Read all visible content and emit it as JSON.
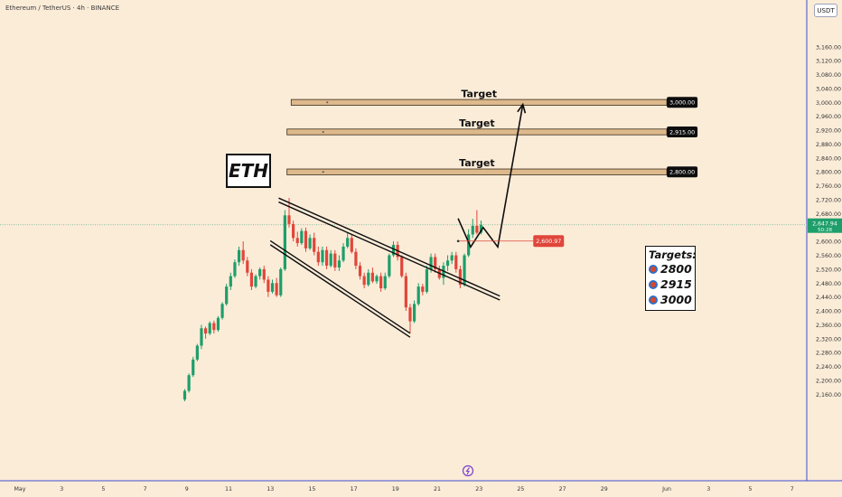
{
  "header": {
    "title": "Ethereum / TetherUS · 4h · BINANCE"
  },
  "currency_button": {
    "label": "USDT"
  },
  "eth_label": {
    "text": "ETH"
  },
  "targets_box": {
    "title": "Targets:",
    "items": [
      {
        "value": "2800",
        "icon": "target-icon"
      },
      {
        "value": "2915",
        "icon": "target-icon"
      },
      {
        "value": "3000",
        "icon": "target-icon"
      }
    ]
  },
  "colors": {
    "up": "#1e9e6a",
    "down": "#e0463a",
    "background": "#fbecd8",
    "target_zone": "#ddb98c",
    "price_marker": "#e0463a",
    "current_price_marker": "#1e9e6a"
  },
  "chart_data": {
    "type": "candlestick",
    "title": "Ethereum / TetherUS · 4h · BINANCE",
    "currency": "USDT",
    "y_axis": {
      "range": [
        2140,
        3200
      ],
      "ticks": [
        "3,160.00",
        "3,120.00",
        "3,080.00",
        "3,040.00",
        "3,000.00",
        "2,960.00",
        "2,920.00",
        "2,880.00",
        "2,840.00",
        "2,800.00",
        "2,760.00",
        "2,720.00",
        "2,680.00",
        "2,640.00",
        "2,600.00",
        "2,560.00",
        "2,520.00",
        "2,480.00",
        "2,440.00",
        "2,400.00",
        "2,360.00",
        "2,320.00",
        "2,280.00",
        "2,240.00",
        "2,200.00",
        "2,160.00"
      ],
      "tick_values": [
        3160,
        3120,
        3080,
        3040,
        3000,
        2960,
        2920,
        2880,
        2840,
        2800,
        2760,
        2720,
        2680,
        2640,
        2600,
        2560,
        2520,
        2480,
        2440,
        2400,
        2360,
        2320,
        2280,
        2240,
        2200,
        2160
      ]
    },
    "x_axis": {
      "labels": [
        "May",
        "3",
        "5",
        "7",
        "9",
        "11",
        "13",
        "15",
        "17",
        "19",
        "21",
        "23",
        "25",
        "27",
        "29",
        "Jun",
        "3",
        "5",
        "7"
      ],
      "day_index": [
        0,
        2,
        4,
        6,
        8,
        10,
        12,
        14,
        16,
        18,
        20,
        22,
        24,
        26,
        28,
        31,
        33,
        35,
        37
      ]
    },
    "target_zones": [
      {
        "label": "Target",
        "price": 3000,
        "price_label": "3,000.00",
        "day_start": 13.0,
        "day_end": 31.0
      },
      {
        "label": "Target",
        "price": 2915,
        "price_label": "2,915.00",
        "day_start": 12.8,
        "day_end": 31.0
      },
      {
        "label": "Target",
        "price": 2800,
        "price_label": "2,800.00",
        "day_start": 12.8,
        "day_end": 31.0
      }
    ],
    "current_price": {
      "value": 2647.94,
      "label": "2,647.94",
      "countdown": "50:28"
    },
    "marked_price": {
      "value": 2600.97,
      "label": "2,600.97"
    },
    "pattern": {
      "name": "falling wedge",
      "upper_line": [
        {
          "day": 12.4,
          "price": 2719
        },
        {
          "day": 23.0,
          "price": 2437
        }
      ],
      "lower_line": [
        {
          "day": 12.0,
          "price": 2596
        },
        {
          "day": 18.7,
          "price": 2330
        }
      ]
    },
    "projection": [
      {
        "day": 21.0,
        "price": 2666
      },
      {
        "day": 21.6,
        "price": 2584
      },
      {
        "day": 22.2,
        "price": 2640
      },
      {
        "day": 22.9,
        "price": 2584
      },
      {
        "day": 24.1,
        "price": 2994
      }
    ],
    "candles": [
      [
        7.9,
        2145,
        2170,
        2140,
        2175
      ],
      [
        8.1,
        2170,
        2215,
        2165,
        2220
      ],
      [
        8.3,
        2215,
        2260,
        2210,
        2268
      ],
      [
        8.5,
        2260,
        2300,
        2255,
        2305
      ],
      [
        8.7,
        2300,
        2350,
        2290,
        2360
      ],
      [
        8.9,
        2350,
        2335,
        2320,
        2355
      ],
      [
        9.1,
        2335,
        2365,
        2330,
        2370
      ],
      [
        9.3,
        2365,
        2345,
        2335,
        2372
      ],
      [
        9.5,
        2345,
        2380,
        2340,
        2385
      ],
      [
        9.7,
        2380,
        2420,
        2375,
        2425
      ],
      [
        9.9,
        2420,
        2470,
        2415,
        2478
      ],
      [
        10.1,
        2470,
        2500,
        2460,
        2510
      ],
      [
        10.3,
        2500,
        2540,
        2495,
        2548
      ],
      [
        10.5,
        2540,
        2575,
        2530,
        2585
      ],
      [
        10.7,
        2575,
        2545,
        2535,
        2600
      ],
      [
        10.9,
        2545,
        2510,
        2500,
        2555
      ],
      [
        11.1,
        2510,
        2470,
        2460,
        2520
      ],
      [
        11.3,
        2470,
        2500,
        2465,
        2505
      ],
      [
        11.5,
        2500,
        2520,
        2490,
        2525
      ],
      [
        11.7,
        2520,
        2490,
        2480,
        2530
      ],
      [
        11.9,
        2490,
        2455,
        2440,
        2500
      ],
      [
        12.1,
        2455,
        2480,
        2450,
        2490
      ],
      [
        12.3,
        2480,
        2445,
        2440,
        2495
      ],
      [
        12.5,
        2445,
        2520,
        2440,
        2525
      ],
      [
        12.7,
        2520,
        2675,
        2515,
        2690
      ],
      [
        12.9,
        2675,
        2650,
        2640,
        2725
      ],
      [
        13.1,
        2650,
        2610,
        2600,
        2660
      ],
      [
        13.3,
        2610,
        2595,
        2585,
        2628
      ],
      [
        13.5,
        2595,
        2630,
        2590,
        2638
      ],
      [
        13.7,
        2630,
        2580,
        2570,
        2640
      ],
      [
        13.9,
        2580,
        2610,
        2575,
        2620
      ],
      [
        14.1,
        2610,
        2570,
        2560,
        2625
      ],
      [
        14.3,
        2570,
        2540,
        2530,
        2585
      ],
      [
        14.5,
        2540,
        2575,
        2530,
        2585
      ],
      [
        14.7,
        2575,
        2530,
        2520,
        2585
      ],
      [
        14.9,
        2530,
        2565,
        2525,
        2575
      ],
      [
        15.1,
        2565,
        2525,
        2515,
        2575
      ],
      [
        15.3,
        2525,
        2545,
        2515,
        2560
      ],
      [
        15.5,
        2545,
        2585,
        2540,
        2595
      ],
      [
        15.7,
        2585,
        2610,
        2580,
        2625
      ],
      [
        15.9,
        2610,
        2570,
        2565,
        2620
      ],
      [
        16.1,
        2570,
        2530,
        2520,
        2580
      ],
      [
        16.3,
        2530,
        2500,
        2490,
        2540
      ],
      [
        16.5,
        2500,
        2475,
        2465,
        2510
      ],
      [
        16.7,
        2475,
        2510,
        2470,
        2520
      ],
      [
        16.9,
        2510,
        2485,
        2480,
        2525
      ],
      [
        17.1,
        2485,
        2500,
        2478,
        2505
      ],
      [
        17.3,
        2500,
        2465,
        2455,
        2510
      ],
      [
        17.5,
        2465,
        2500,
        2460,
        2510
      ],
      [
        17.7,
        2500,
        2560,
        2495,
        2565
      ],
      [
        17.9,
        2560,
        2590,
        2555,
        2600
      ],
      [
        18.1,
        2590,
        2555,
        2545,
        2600
      ],
      [
        18.3,
        2555,
        2500,
        2495,
        2560
      ],
      [
        18.5,
        2500,
        2410,
        2400,
        2510
      ],
      [
        18.7,
        2410,
        2370,
        2335,
        2420
      ],
      [
        18.9,
        2370,
        2420,
        2365,
        2430
      ],
      [
        19.1,
        2420,
        2470,
        2415,
        2480
      ],
      [
        19.3,
        2470,
        2455,
        2445,
        2478
      ],
      [
        19.5,
        2455,
        2520,
        2450,
        2530
      ],
      [
        19.7,
        2520,
        2555,
        2510,
        2565
      ],
      [
        19.9,
        2555,
        2520,
        2510,
        2565
      ],
      [
        20.1,
        2520,
        2495,
        2490,
        2530
      ],
      [
        20.3,
        2495,
        2530,
        2475,
        2540
      ],
      [
        20.5,
        2530,
        2545,
        2515,
        2560
      ],
      [
        20.7,
        2545,
        2560,
        2535,
        2570
      ],
      [
        20.9,
        2560,
        2520,
        2510,
        2570
      ],
      [
        21.1,
        2520,
        2475,
        2465,
        2530
      ],
      [
        21.3,
        2475,
        2560,
        2470,
        2565
      ],
      [
        21.5,
        2560,
        2620,
        2555,
        2635
      ],
      [
        21.7,
        2620,
        2645,
        2610,
        2665
      ],
      [
        21.9,
        2645,
        2625,
        2620,
        2690
      ],
      [
        22.1,
        2625,
        2648,
        2620,
        2660
      ]
    ]
  }
}
